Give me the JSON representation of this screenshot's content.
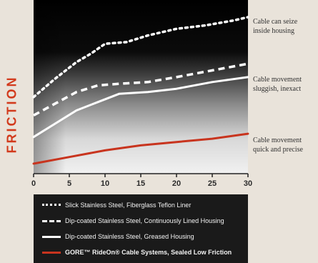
{
  "chart_data": {
    "type": "line",
    "ylabel": "FRICTION",
    "xlabel": "",
    "x_ticks": [
      0,
      5,
      10,
      15,
      20,
      25,
      30
    ],
    "xlim": [
      0,
      30
    ],
    "ylim": [
      0,
      100
    ],
    "grid": false,
    "legend_position": "bottom",
    "series": [
      {
        "name": "Slick Stainless Steel, Fiberglass Teflon Liner",
        "style": "dotted",
        "color": "#ffffff",
        "x": [
          0,
          3,
          6,
          8,
          10,
          13,
          16,
          20,
          24,
          28,
          30
        ],
        "y": [
          46,
          57,
          67,
          72,
          78,
          79,
          83,
          87,
          89,
          92,
          94
        ]
      },
      {
        "name": "Dip-coated Stainless Steel, Continuously Lined Housing",
        "style": "dashed",
        "color": "#ffffff",
        "x": [
          0,
          3,
          6,
          9,
          12,
          16,
          20,
          25,
          30
        ],
        "y": [
          35,
          42,
          49,
          53,
          54,
          55,
          58,
          62,
          66
        ]
      },
      {
        "name": "Dip-coated Stainless Steel, Greased Housing",
        "style": "solid",
        "color": "#ffffff",
        "x": [
          0,
          3,
          6,
          9,
          12,
          16,
          20,
          25,
          30
        ],
        "y": [
          22,
          30,
          38,
          43,
          48,
          49,
          51,
          55,
          58
        ]
      },
      {
        "name": "GORE™ RideOn® Cable Systems, Sealed Low Friction",
        "style": "solid",
        "color": "#c8341e",
        "x": [
          0,
          5,
          10,
          15,
          20,
          25,
          30
        ],
        "y": [
          6,
          10,
          14,
          17,
          19,
          21,
          24
        ]
      }
    ],
    "annotations": [
      {
        "text": "Cable can seize\ninside housing"
      },
      {
        "text": "Cable movement\nsluggish, inexact"
      },
      {
        "text": "Cable movement\nquick and precise"
      }
    ]
  },
  "colors": {
    "ylabel": "#d23a1c",
    "legend_bg": "#1a1a1a",
    "gore_red": "#c8341e"
  }
}
